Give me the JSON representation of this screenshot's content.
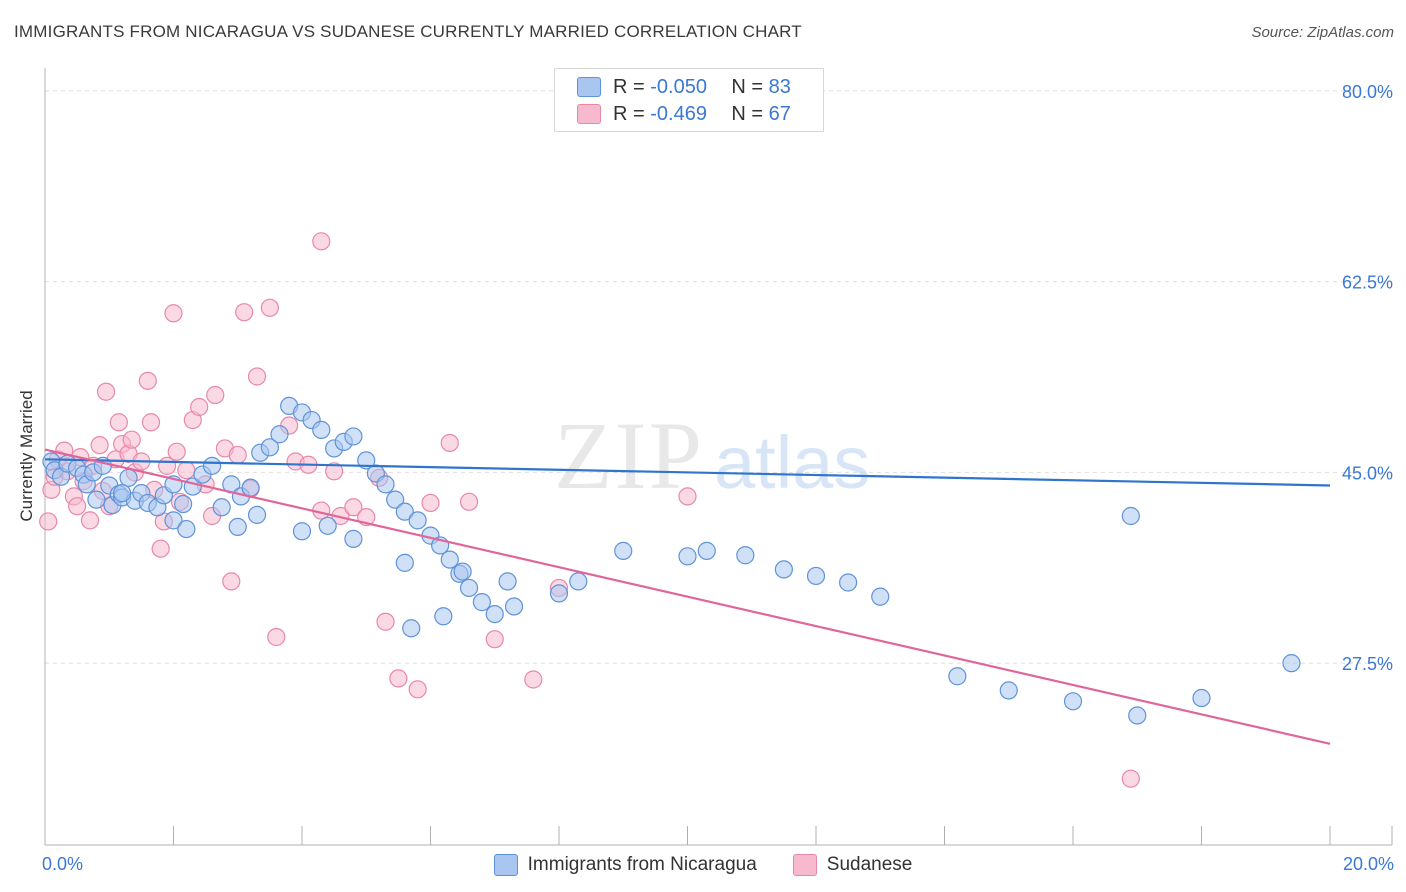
{
  "title": "IMMIGRANTS FROM NICARAGUA VS SUDANESE CURRENTLY MARRIED CORRELATION CHART",
  "source": "Source: ZipAtlas.com",
  "legend_top": {
    "rows": [
      {
        "r_label": "R =",
        "r_value": "-0.050",
        "n_label": "N =",
        "n_value": "83"
      },
      {
        "r_label": "R =",
        "r_value": "-0.469",
        "n_label": "N =",
        "n_value": "67"
      }
    ]
  },
  "legend_bottom": {
    "series1": "Immigrants from Nicaragua",
    "series2": "Sudanese"
  },
  "colors": {
    "blue_fill": "#a9c6f0",
    "blue_stroke": "#5f93d9",
    "blue_line": "#2f75cc",
    "pink_fill": "#f6b9cd",
    "pink_stroke": "#e888a8",
    "pink_line": "#e0669a",
    "axis_text": "#3a78d4",
    "grid": "#dedede"
  },
  "chart_data": {
    "type": "scatter",
    "title": "IMMIGRANTS FROM NICARAGUA VS SUDANESE CURRENTLY MARRIED CORRELATION CHART",
    "xlabel": "",
    "ylabel": "Currently Married",
    "xlim": [
      0,
      20
    ],
    "ylim": [
      11,
      81
    ],
    "x_tick_labels": [
      "0.0%",
      "20.0%"
    ],
    "y_ticks": [
      27.5,
      45.0,
      62.5,
      80.0
    ],
    "y_tick_labels": [
      "27.5%",
      "45.0%",
      "62.5%",
      "80.0%"
    ],
    "grid": true,
    "legend_position": "top-center",
    "watermark": "ZIPatlas",
    "series": [
      {
        "name": "Immigrants from Nicaragua",
        "color": "#5f93d9",
        "trend": {
          "x": [
            0,
            20
          ],
          "y": [
            46.2,
            43.8
          ]
        },
        "points": [
          [
            0.1,
            46.0
          ],
          [
            0.15,
            45.2
          ],
          [
            0.25,
            44.6
          ],
          [
            0.35,
            45.8
          ],
          [
            0.5,
            45.4
          ],
          [
            0.6,
            44.8
          ],
          [
            0.65,
            43.9
          ],
          [
            0.75,
            45.0
          ],
          [
            0.8,
            42.5
          ],
          [
            0.9,
            45.6
          ],
          [
            1.0,
            43.8
          ],
          [
            1.05,
            42.0
          ],
          [
            1.15,
            43.0
          ],
          [
            1.2,
            42.7
          ],
          [
            1.3,
            44.5
          ],
          [
            1.4,
            42.4
          ],
          [
            1.5,
            43.1
          ],
          [
            1.6,
            42.2
          ],
          [
            1.75,
            41.8
          ],
          [
            1.85,
            42.9
          ],
          [
            2.0,
            43.9
          ],
          [
            2.15,
            42.1
          ],
          [
            2.3,
            43.7
          ],
          [
            2.45,
            44.8
          ],
          [
            2.6,
            45.6
          ],
          [
            2.75,
            41.8
          ],
          [
            2.9,
            43.9
          ],
          [
            3.05,
            42.8
          ],
          [
            3.2,
            43.6
          ],
          [
            3.35,
            46.8
          ],
          [
            3.5,
            47.3
          ],
          [
            3.65,
            48.5
          ],
          [
            3.8,
            51.1
          ],
          [
            4.0,
            50.5
          ],
          [
            4.15,
            49.8
          ],
          [
            4.3,
            48.9
          ],
          [
            4.5,
            47.2
          ],
          [
            4.65,
            47.8
          ],
          [
            4.8,
            48.3
          ],
          [
            5.0,
            46.1
          ],
          [
            5.15,
            44.9
          ],
          [
            5.3,
            43.9
          ],
          [
            5.45,
            42.5
          ],
          [
            5.6,
            41.4
          ],
          [
            5.8,
            40.6
          ],
          [
            6.0,
            39.2
          ],
          [
            6.15,
            38.3
          ],
          [
            6.3,
            37.0
          ],
          [
            6.45,
            35.7
          ],
          [
            6.6,
            34.4
          ],
          [
            6.8,
            33.1
          ],
          [
            7.0,
            32.0
          ],
          [
            1.2,
            43.1
          ],
          [
            2.0,
            40.6
          ],
          [
            3.0,
            40.0
          ],
          [
            4.0,
            39.6
          ],
          [
            4.8,
            38.9
          ],
          [
            5.6,
            36.7
          ],
          [
            6.5,
            35.9
          ],
          [
            7.2,
            35.0
          ],
          [
            8.0,
            33.9
          ],
          [
            2.2,
            39.8
          ],
          [
            3.3,
            41.1
          ],
          [
            4.4,
            40.1
          ],
          [
            5.7,
            30.7
          ],
          [
            6.2,
            31.8
          ],
          [
            7.3,
            32.7
          ],
          [
            8.3,
            35.0
          ],
          [
            9.0,
            37.8
          ],
          [
            10.0,
            37.3
          ],
          [
            10.3,
            37.8
          ],
          [
            10.9,
            37.4
          ],
          [
            11.5,
            36.1
          ],
          [
            12.0,
            35.5
          ],
          [
            12.5,
            34.9
          ],
          [
            13.0,
            33.6
          ],
          [
            14.2,
            26.3
          ],
          [
            15.0,
            25.0
          ],
          [
            16.0,
            24.0
          ],
          [
            16.9,
            41.0
          ],
          [
            17.0,
            22.7
          ],
          [
            18.0,
            24.3
          ],
          [
            19.4,
            27.5
          ]
        ]
      },
      {
        "name": "Sudanese",
        "color": "#e888a8",
        "trend": {
          "x": [
            0,
            20
          ],
          "y": [
            47.1,
            20.1
          ]
        },
        "points": [
          [
            0.05,
            40.5
          ],
          [
            0.1,
            43.4
          ],
          [
            0.15,
            44.6
          ],
          [
            0.2,
            46.2
          ],
          [
            0.3,
            47.0
          ],
          [
            0.35,
            45.1
          ],
          [
            0.45,
            42.8
          ],
          [
            0.5,
            41.9
          ],
          [
            0.55,
            46.4
          ],
          [
            0.6,
            44.2
          ],
          [
            0.7,
            40.6
          ],
          [
            0.75,
            45.6
          ],
          [
            0.85,
            47.5
          ],
          [
            0.9,
            43.3
          ],
          [
            0.95,
            52.4
          ],
          [
            1.0,
            41.9
          ],
          [
            1.1,
            46.2
          ],
          [
            1.15,
            49.6
          ],
          [
            1.2,
            47.6
          ],
          [
            1.3,
            46.7
          ],
          [
            1.35,
            48.0
          ],
          [
            1.4,
            45.0
          ],
          [
            1.5,
            46.0
          ],
          [
            1.6,
            53.4
          ],
          [
            1.65,
            49.6
          ],
          [
            1.7,
            43.4
          ],
          [
            1.8,
            38.0
          ],
          [
            1.85,
            40.5
          ],
          [
            1.9,
            45.6
          ],
          [
            2.0,
            59.6
          ],
          [
            2.05,
            46.9
          ],
          [
            2.1,
            42.3
          ],
          [
            2.2,
            45.2
          ],
          [
            2.3,
            49.8
          ],
          [
            2.4,
            51.0
          ],
          [
            2.5,
            43.9
          ],
          [
            2.6,
            41.0
          ],
          [
            2.65,
            52.1
          ],
          [
            2.8,
            47.2
          ],
          [
            2.9,
            35.0
          ],
          [
            3.0,
            46.6
          ],
          [
            3.1,
            59.7
          ],
          [
            3.2,
            43.5
          ],
          [
            3.3,
            53.8
          ],
          [
            3.5,
            60.1
          ],
          [
            3.6,
            29.9
          ],
          [
            3.8,
            49.3
          ],
          [
            3.9,
            46.0
          ],
          [
            4.1,
            45.7
          ],
          [
            4.3,
            41.5
          ],
          [
            4.5,
            45.1
          ],
          [
            4.6,
            41.0
          ],
          [
            4.8,
            41.8
          ],
          [
            5.0,
            40.9
          ],
          [
            5.2,
            44.5
          ],
          [
            5.3,
            31.3
          ],
          [
            5.5,
            26.1
          ],
          [
            5.8,
            25.1
          ],
          [
            6.0,
            42.2
          ],
          [
            6.3,
            47.7
          ],
          [
            6.6,
            42.3
          ],
          [
            7.0,
            29.7
          ],
          [
            7.6,
            26.0
          ],
          [
            8.0,
            34.4
          ],
          [
            10.0,
            42.8
          ],
          [
            4.3,
            66.2
          ],
          [
            16.9,
            16.9
          ]
        ]
      }
    ]
  }
}
